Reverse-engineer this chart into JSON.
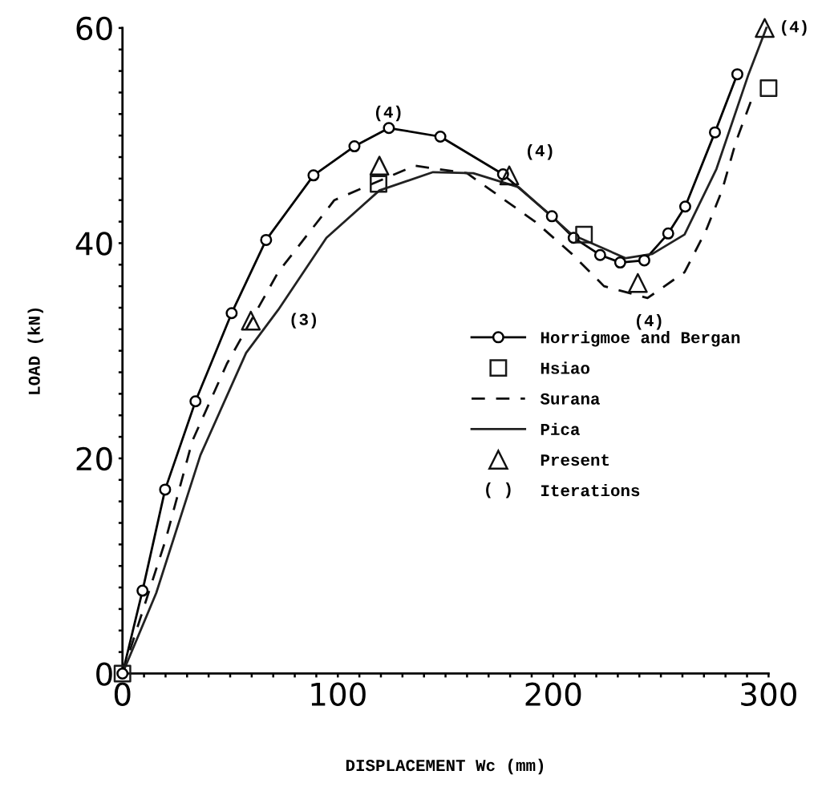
{
  "chart_data": {
    "type": "line",
    "xlabel": "DISPLACEMENT Wc (mm)",
    "ylabel": "LOAD (kN)",
    "xlim": [
      0,
      300
    ],
    "ylim": [
      0,
      60
    ],
    "xticks": [
      0,
      {
        "value": 10,
        "label": null
      },
      {
        "value": 20,
        "label": null
      },
      {
        "value": 30,
        "label": null
      },
      {
        "value": 40,
        "label": null
      },
      {
        "value": 50,
        "label": null
      },
      {
        "value": 60,
        "label": null
      },
      {
        "value": 70,
        "label": null
      },
      {
        "value": 80,
        "label": null
      },
      {
        "value": 90,
        "label": null
      },
      100,
      {
        "value": 110,
        "label": null
      },
      {
        "value": 120,
        "label": null
      },
      {
        "value": 130,
        "label": null
      },
      {
        "value": 140,
        "label": null
      },
      {
        "value": 150,
        "label": null
      },
      {
        "value": 160,
        "label": null
      },
      {
        "value": 170,
        "label": null
      },
      {
        "value": 180,
        "label": null
      },
      {
        "value": 190,
        "label": null
      },
      200,
      {
        "value": 210,
        "label": null
      },
      {
        "value": 220,
        "label": null
      },
      {
        "value": 230,
        "label": null
      },
      {
        "value": 240,
        "label": null
      },
      {
        "value": 250,
        "label": null
      },
      {
        "value": 260,
        "label": null
      },
      {
        "value": 270,
        "label": null
      },
      {
        "value": 280,
        "label": null
      },
      {
        "value": 290,
        "label": null
      },
      300
    ],
    "yticks": [
      0,
      {
        "value": 2,
        "label": null
      },
      {
        "value": 4,
        "label": null
      },
      {
        "value": 6,
        "label": null
      },
      {
        "value": 8,
        "label": null
      },
      {
        "value": 10,
        "label": null
      },
      {
        "value": 12,
        "label": null
      },
      {
        "value": 14,
        "label": null
      },
      {
        "value": 16,
        "label": null
      },
      {
        "value": 18,
        "label": null
      },
      20,
      {
        "value": 22,
        "label": null
      },
      {
        "value": 24,
        "label": null
      },
      {
        "value": 26,
        "label": null
      },
      {
        "value": 28,
        "label": null
      },
      {
        "value": 30,
        "label": null
      },
      {
        "value": 32,
        "label": null
      },
      {
        "value": 34,
        "label": null
      },
      {
        "value": 36,
        "label": null
      },
      {
        "value": 38,
        "label": null
      },
      40,
      {
        "value": 42,
        "label": null
      },
      {
        "value": 44,
        "label": null
      },
      {
        "value": 46,
        "label": null
      },
      {
        "value": 48,
        "label": null
      },
      {
        "value": 50,
        "label": null
      },
      {
        "value": 52,
        "label": null
      },
      {
        "value": 54,
        "label": null
      },
      {
        "value": 56,
        "label": null
      },
      {
        "value": 58,
        "label": null
      },
      60
    ],
    "grid": false,
    "legend": "center right",
    "series": [
      {
        "name": "Horrigmoe and Bergan",
        "marker": "circle",
        "line_style": "solid",
        "color": "#000000",
        "x": [
          0,
          9.3,
          19.8,
          33.9,
          50.7,
          66.7,
          88.7,
          107.7,
          123.7,
          147.6,
          176.7,
          199.4,
          209.5,
          221.8,
          231.1,
          242.3,
          253.4,
          261.3,
          275.1,
          285.5
        ],
        "values": [
          0,
          7.7,
          17.1,
          25.3,
          33.5,
          40.3,
          46.3,
          49.0,
          50.7,
          49.9,
          46.4,
          42.5,
          40.5,
          38.9,
          38.2,
          38.4,
          40.9,
          43.4,
          50.3,
          55.7
        ]
      },
      {
        "name": "Hsiao",
        "type": "scatter",
        "marker": "square",
        "color": "#1a1a1a",
        "x": [
          0,
          118.9,
          214.3,
          300
        ],
        "values": [
          0,
          45.5,
          40.8,
          54.4
        ]
      },
      {
        "name": "Surana",
        "marker": "none",
        "line_style": "dashed",
        "color": "#0d0d0d",
        "x": [
          0,
          20,
          32.4,
          48.5,
          72.3,
          98.4,
          135.7,
          160,
          191.6,
          208.7,
          223.6,
          243.8,
          261,
          271,
          278.4,
          284.8,
          292.2
        ],
        "values": [
          0,
          12.4,
          21.6,
          28.8,
          37.3,
          44,
          47.2,
          46.5,
          42,
          39,
          36,
          34.9,
          37.3,
          41.2,
          44.9,
          49.4,
          53.4
        ]
      },
      {
        "name": "Pica",
        "marker": "none",
        "line_style": "solid",
        "color": "#222222",
        "x": [
          0,
          15.7,
          36.2,
          57.4,
          72.3,
          94.7,
          119.3,
          144.2,
          162.9,
          184,
          208.7,
          233.7,
          246,
          261,
          275.8,
          290.7,
          299
        ],
        "values": [
          0,
          7.5,
          20.3,
          29.8,
          33.8,
          40.5,
          44.9,
          46.6,
          46.5,
          45.2,
          40.8,
          38.6,
          39,
          40.8,
          46.9,
          55.7,
          60
        ]
      },
      {
        "name": "Present",
        "type": "scatter",
        "marker": "triangle",
        "color": "#111111",
        "x": [
          59.6,
          119.3,
          179.6,
          239.3,
          298.2
        ],
        "values": [
          32.8,
          47.2,
          46.3,
          36.3,
          60
        ]
      }
    ],
    "annotations": [
      "( )",
      "Iterations",
      {
        "text": "(3)",
        "x": 59.6,
        "y": 32.8
      },
      {
        "text": "(4)",
        "x": 119.3,
        "y": 47.2
      },
      {
        "text": "(4)",
        "x": 179.6,
        "y": 46.3
      },
      {
        "text": "(4)",
        "x": 239.3,
        "y": 36.3
      },
      {
        "text": "(4)",
        "x": 298.2,
        "y": 60
      }
    ]
  }
}
